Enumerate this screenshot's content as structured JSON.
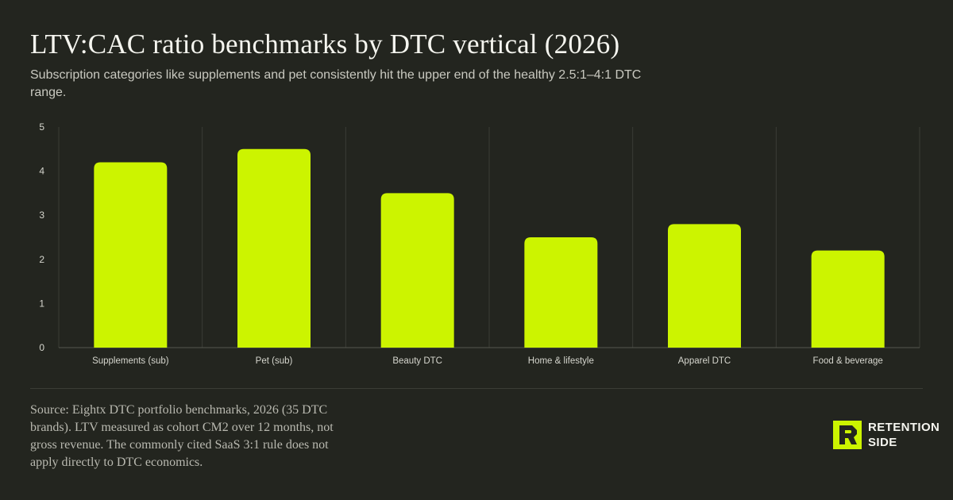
{
  "title": "LTV:CAC ratio benchmarks by DTC vertical (2026)",
  "subtitle": "Subscription categories like supplements and pet consistently hit the upper end of the healthy 2.5:1–4:1 DTC range.",
  "source": "Source: Eightx DTC portfolio benchmarks, 2026 (35 DTC brands). LTV measured as cohort CM2 over 12 months, not gross revenue. The commonly cited SaaS 3:1 rule does not apply directly to DTC economics.",
  "logo": {
    "line1": "RETENTION",
    "line2": "SIDE",
    "icon": "retention-side-logo-icon"
  },
  "colors": {
    "background": "#23251f",
    "bar": "#ccf400",
    "grid": "#3b3d36",
    "axis_text": "#d6d6ce"
  },
  "chart_data": {
    "type": "bar",
    "categories": [
      "Supplements (sub)",
      "Pet (sub)",
      "Beauty DTC",
      "Home & lifestyle",
      "Apparel DTC",
      "Food & beverage"
    ],
    "values": [
      4.2,
      4.5,
      3.5,
      2.5,
      2.8,
      2.2
    ],
    "ylim": [
      0,
      5
    ],
    "yticks": [
      "0",
      "1",
      "2",
      "3",
      "4",
      "5"
    ],
    "xlabel": "",
    "ylabel": "",
    "grid": true
  }
}
